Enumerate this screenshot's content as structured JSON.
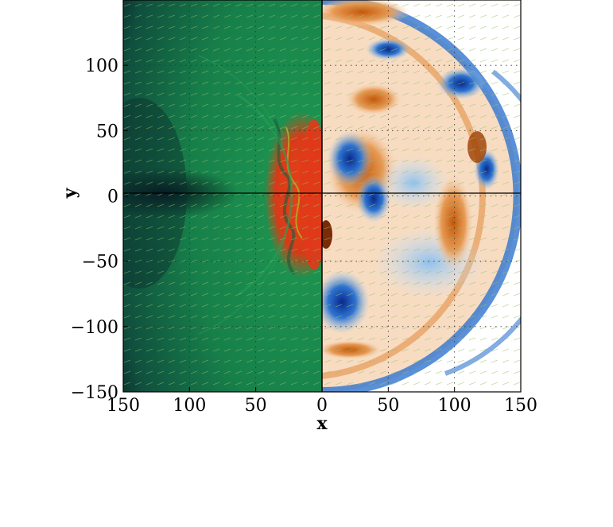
{
  "chart_data": {
    "type": "heatmap",
    "title": "",
    "xlabel": "x",
    "ylabel": "y",
    "panels": [
      {
        "name": "",
        "x_range": [
          150,
          0
        ],
        "colormap": [
          "#0b1f2e",
          "#1e8a4a",
          "#e03a1a"
        ]
      },
      {
        "name": "",
        "x_range": [
          0,
          150
        ],
        "colormap": [
          "#0a2a8a",
          "#ffffff",
          "#c25a0a"
        ]
      }
    ],
    "ylim": [
      -150,
      150
    ],
    "x_ticks": [
      "150",
      "100",
      "50",
      "0",
      "50",
      "100",
      "150"
    ],
    "y_ticks": [
      "100",
      "50",
      "0",
      "−50",
      "−100",
      "−150"
    ],
    "y_tick_values": [
      100,
      50,
      0,
      -50,
      -100,
      -150
    ],
    "grid": true,
    "overlay": "velocity vector arrows",
    "colors": {
      "left_dark": "#0b1f2e",
      "left_mid": "#1e8a4a",
      "left_hot": "#e03a1a",
      "right_neg": "#0a2a8a",
      "right_pos": "#c25a0a",
      "arrow": "#9bbf6a"
    }
  }
}
